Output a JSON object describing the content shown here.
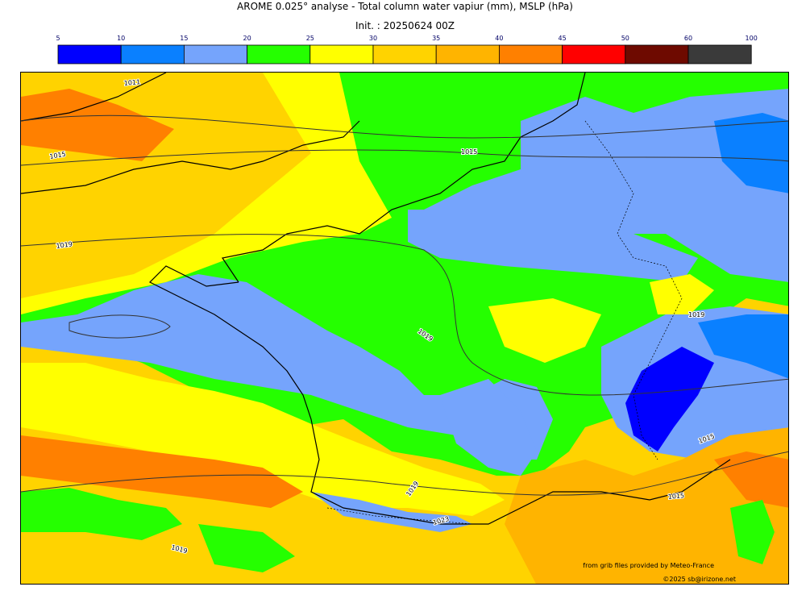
{
  "header": {
    "title": "AROME 0.025° analyse - Total column water vapiur (mm), MSLP (hPa)",
    "init": "Init. : 20250624 00Z"
  },
  "colorbar": {
    "ticks": [
      "5",
      "10",
      "15",
      "20",
      "25",
      "30",
      "35",
      "40",
      "45",
      "50",
      "60",
      "100"
    ],
    "colors": [
      "#0000ff",
      "#0a80ff",
      "#75a4fc",
      "#25ff00",
      "#ffff00",
      "#ffd300",
      "#ffb400",
      "#ff8000",
      "#ff0000",
      "#6e0a00",
      "#3a3a3a"
    ]
  },
  "map": {
    "isobar_labels": [
      "1011",
      "1015",
      "1015",
      "1019",
      "1019",
      "1019",
      "1015",
      "1015",
      "1019",
      "1023",
      "1019"
    ]
  },
  "footer": {
    "source": "from grib files provided by Meteo-France",
    "copyright": "©2025 sb@irizone.net"
  }
}
